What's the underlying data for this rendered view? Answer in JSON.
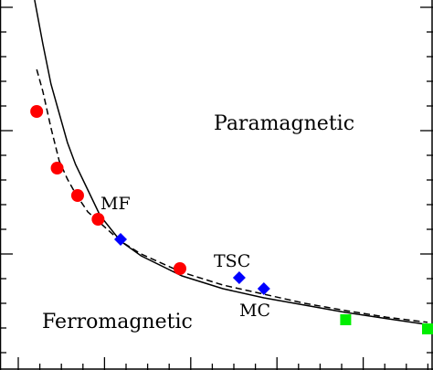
{
  "chart_data": {
    "type": "scatter",
    "title": "",
    "xlabel": "",
    "ylabel": "",
    "xlim": [
      0,
      100
    ],
    "ylim": [
      0,
      100
    ],
    "grid": false,
    "region_labels": [
      "Paramagnetic",
      "Ferromagnetic"
    ],
    "point_labels": [
      "MF",
      "TSC",
      "MC"
    ],
    "series": [
      {
        "kind": "line",
        "dash": "solid",
        "color": "#000000",
        "x": [
          4,
          6,
          8,
          10,
          12,
          14,
          17,
          20,
          25,
          30,
          40,
          50,
          60,
          70,
          80,
          90,
          100
        ],
        "y": [
          100,
          88,
          77,
          69,
          61,
          55,
          48,
          41,
          34,
          30,
          24.5,
          21,
          18.5,
          16.5,
          14.5,
          12.8,
          11.2
        ]
      },
      {
        "kind": "line",
        "dash": "dashed",
        "color": "#000000",
        "x": [
          4.5,
          6,
          8,
          10,
          12,
          14,
          17,
          20,
          25,
          30,
          40,
          50,
          60,
          70,
          80,
          90,
          100
        ],
        "y": [
          81,
          75,
          65,
          56,
          51,
          47,
          42,
          39,
          34,
          30.5,
          25.5,
          22,
          19.5,
          17,
          15,
          13.2,
          11.8
        ]
      },
      {
        "kind": "points",
        "marker": "circle",
        "color": "#ff0000",
        "x": [
          4.5,
          9.5,
          14.5,
          19.5,
          39.5
        ],
        "y": [
          69.5,
          54,
          46.5,
          40,
          26.5
        ]
      },
      {
        "kind": "points",
        "marker": "diamond",
        "color": "#0000ff",
        "x": [
          25,
          54,
          60
        ],
        "y": [
          34.5,
          24,
          21
        ]
      },
      {
        "kind": "points",
        "marker": "square",
        "color": "#00ee00",
        "x": [
          80,
          100
        ],
        "y": [
          12.5,
          10
        ]
      }
    ]
  }
}
